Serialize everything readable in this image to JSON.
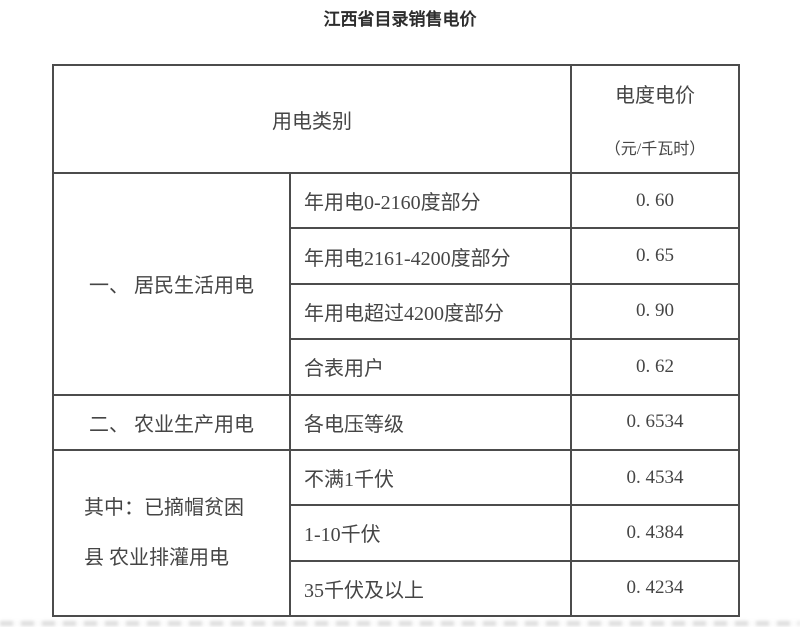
{
  "title": "江西省目录销售电价",
  "table": {
    "columns": {
      "category": "用电类别",
      "price_line1": "电度电价",
      "price_unit": "（元/千瓦时）"
    },
    "groups": [
      {
        "label": "一、 居民生活用电",
        "rowspan": 4
      },
      {
        "label": "二、 农业生产用电",
        "rowspan": 1
      },
      {
        "label": "其中：已摘帽贫困\n县 农业排灌用电",
        "rowspan": 3
      }
    ],
    "rows": [
      {
        "sub": "年用电0-2160度部分",
        "price": "0. 60"
      },
      {
        "sub": "年用电2161-4200度部分",
        "price": "0. 65"
      },
      {
        "sub": "年用电超过4200度部分",
        "price": "0. 90"
      },
      {
        "sub": "合表用户",
        "price": "0. 62"
      },
      {
        "sub": "各电压等级",
        "price": "0. 6534"
      },
      {
        "sub": "不满1千伏",
        "price": "0. 4534"
      },
      {
        "sub": "1-10千伏",
        "price": "0. 4384"
      },
      {
        "sub": "35千伏及以上",
        "price": "0. 4234"
      }
    ]
  },
  "colors": {
    "background": "#ffffff",
    "text": "#454545",
    "border": "#4c4c4c",
    "title_text": "#2d2d2d"
  }
}
